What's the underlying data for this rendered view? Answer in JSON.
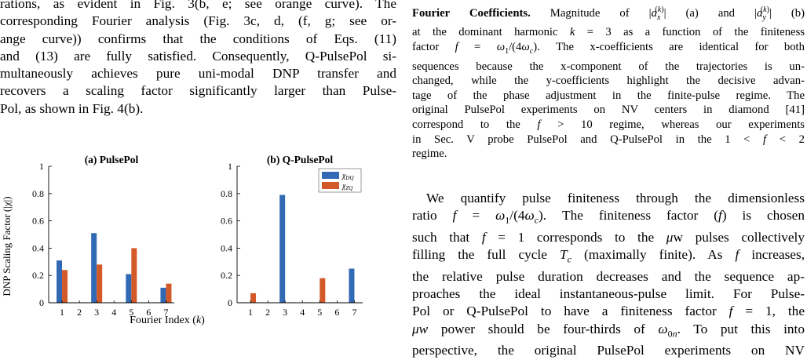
{
  "left_column": {
    "paragraph_lines": [
      "rations, as evident in Fig. 3(b, e; see orange curve). The",
      "corresponding Fourier analysis (Fig. 3c, d, (f, g; see or-",
      "ange curve)) confirms that the conditions of Eqs. (11)",
      "and (13) are fully satisfied. Consequently, Q-PulsePol si-",
      "multaneously achieves pure uni-modal DNP transfer and",
      "recovers a scaling factor significantly larger than Pulse-",
      "Pol, as shown in Fig. 4(b)."
    ]
  },
  "figure": {
    "ylabel": "DNP Scaling Factor (|χ|)",
    "xlabel": "Fourier Index (k)",
    "colors": {
      "dq": "#3169b5",
      "zq": "#d35a28"
    },
    "legend": {
      "dq": "χDQ",
      "zq": "χZQ"
    }
  },
  "chart_data": [
    {
      "type": "bar",
      "title": "(a) PulsePol",
      "categories": [
        "1",
        "2",
        "3",
        "4",
        "5",
        "6",
        "7"
      ],
      "ylim": [
        0,
        1
      ],
      "yticks": [
        "0",
        "0.2",
        "0.4",
        "0.6",
        "0.8",
        "1"
      ],
      "series": [
        {
          "name": "χDQ",
          "values": [
            0.31,
            0,
            0.51,
            0,
            0.21,
            0,
            0.11
          ]
        },
        {
          "name": "χZQ",
          "values": [
            0.24,
            0,
            0.28,
            0,
            0.4,
            0,
            0.14
          ]
        }
      ],
      "xlabel": "Fourier Index (k)",
      "ylabel": "DNP Scaling Factor (|χ|)"
    },
    {
      "type": "bar",
      "title": "(b) Q-PulsePol",
      "categories": [
        "1",
        "2",
        "3",
        "4",
        "5",
        "6",
        "7"
      ],
      "ylim": [
        0,
        1
      ],
      "yticks": [
        "0",
        "0.2",
        "0.4",
        "0.6",
        "0.8",
        "1"
      ],
      "series": [
        {
          "name": "χDQ",
          "values": [
            0,
            0,
            0.79,
            0,
            0,
            0,
            0.25
          ]
        },
        {
          "name": "χZQ",
          "values": [
            0.07,
            0,
            0,
            0,
            0.18,
            0,
            0
          ]
        }
      ],
      "legend_position": "top-right",
      "xlabel": "Fourier Index (k)"
    }
  ],
  "right_column": {
    "caption_title": "Fourier Coefficients.",
    "caption_lines": [
      "Magnitude of |a_x^(k)| (a) and |a_y^(k)| (b)",
      "at the dominant harmonic k = 3 as a function of the finiteness",
      "factor f = ω1/(4ωc). The x-coefficients are identical for both",
      "sequences because the x-component of the trajectories is un-",
      "changed, while the y-coefficients highlight the decisive advan-",
      "tage of the phase adjustment in the finite-pulse regime. The",
      "original PulsePol experiments on NV centers in diamond [41]",
      "correspond to the f > 10 regime, whereas our experiments",
      "in Sec. V probe PulsePol and Q-PulsePol in the 1 < f < 2",
      "regime."
    ],
    "body_lines": [
      "We quantify pulse finiteness through the dimensionless",
      "ratio f = ω1/(4ωc). The finiteness factor (f) is chosen",
      "such that f = 1 corresponds to the μw pulses collectively",
      "filling the full cycle Tc (maximally finite). As f increases,",
      "the relative pulse duration decreases and the sequence ap-",
      "proaches the ideal instantaneous-pulse limit. For Pulse-",
      "Pol or Q-PulsePol to have a finiteness factor f = 1, the",
      "μw power should be four-thirds of ω0n. To put this into",
      "perspective, the original PulsePol experiments on NV"
    ]
  }
}
